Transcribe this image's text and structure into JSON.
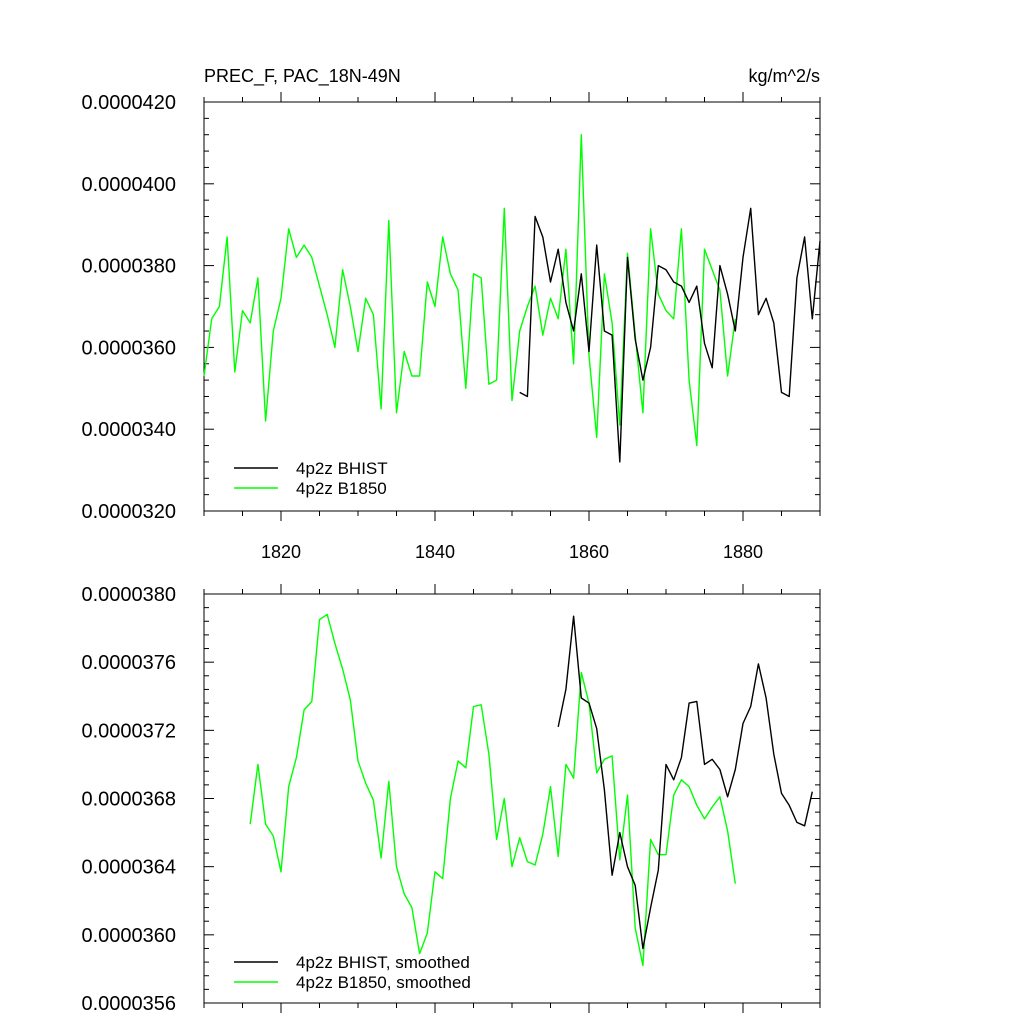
{
  "chart_data": [
    {
      "type": "line",
      "title": "PREC_F, PAC_18N-49N",
      "units": "kg/m^2/s",
      "ylim": [
        3.2e-05,
        4.2e-05
      ],
      "xlim": [
        1810,
        1890
      ],
      "y_tick_labels": [
        "0.0000320",
        "0.0000340",
        "0.0000360",
        "0.0000380",
        "0.0000400",
        "0.0000420"
      ],
      "x_tick_labels": [
        "1820",
        "1840",
        "1860",
        "1880"
      ],
      "legend_position": "bottom-left",
      "series": [
        {
          "name": "4p2z BHIST",
          "color": "#000000",
          "x_start": 1851,
          "values": [
            3.49e-05,
            3.48e-05,
            3.92e-05,
            3.87e-05,
            3.76e-05,
            3.84e-05,
            3.71e-05,
            3.64e-05,
            3.78e-05,
            3.59e-05,
            3.85e-05,
            3.64e-05,
            3.63e-05,
            3.32e-05,
            3.82e-05,
            3.62e-05,
            3.52e-05,
            3.6e-05,
            3.8e-05,
            3.79e-05,
            3.76e-05,
            3.75e-05,
            3.71e-05,
            3.75e-05,
            3.61e-05,
            3.55e-05,
            3.8e-05,
            3.73e-05,
            3.64e-05,
            3.82e-05,
            3.94e-05,
            3.68e-05,
            3.72e-05,
            3.66e-05,
            3.49e-05,
            3.48e-05,
            3.77e-05,
            3.87e-05,
            3.67e-05,
            3.86e-05
          ]
        },
        {
          "name": "4p2z B1850",
          "color": "#00ff00",
          "x_start": 1810,
          "values": [
            3.53e-05,
            3.67e-05,
            3.7e-05,
            3.87e-05,
            3.54e-05,
            3.69e-05,
            3.66e-05,
            3.77e-05,
            3.42e-05,
            3.64e-05,
            3.72e-05,
            3.89e-05,
            3.82e-05,
            3.85e-05,
            3.82e-05,
            3.75e-05,
            3.68e-05,
            3.6e-05,
            3.79e-05,
            3.7e-05,
            3.59e-05,
            3.72e-05,
            3.68e-05,
            3.45e-05,
            3.91e-05,
            3.44e-05,
            3.59e-05,
            3.53e-05,
            3.53e-05,
            3.76e-05,
            3.7e-05,
            3.87e-05,
            3.78e-05,
            3.74e-05,
            3.5e-05,
            3.78e-05,
            3.77e-05,
            3.51e-05,
            3.52e-05,
            3.94e-05,
            3.47e-05,
            3.64e-05,
            3.7e-05,
            3.75e-05,
            3.63e-05,
            3.72e-05,
            3.67e-05,
            3.84e-05,
            3.56e-05,
            4.12e-05,
            3.58e-05,
            3.38e-05,
            3.78e-05,
            3.66e-05,
            3.41e-05,
            3.83e-05,
            3.63e-05,
            3.44e-05,
            3.89e-05,
            3.73e-05,
            3.69e-05,
            3.67e-05,
            3.89e-05,
            3.52e-05,
            3.36e-05,
            3.84e-05,
            3.79e-05,
            3.74e-05,
            3.53e-05,
            3.67e-05
          ]
        }
      ]
    },
    {
      "type": "line",
      "ylim": [
        3.56e-05,
        3.8e-05
      ],
      "xlim": [
        1810,
        1890
      ],
      "y_tick_labels": [
        "0.0000356",
        "0.0000360",
        "0.0000364",
        "0.0000368",
        "0.0000372",
        "0.0000376",
        "0.0000380"
      ],
      "legend_position": "bottom-left",
      "series": [
        {
          "name": "4p2z BHIST, smoothed",
          "color": "#000000",
          "x_start": 1856,
          "values": [
            3.722e-05,
            3.744e-05,
            3.787e-05,
            3.739e-05,
            3.736e-05,
            3.721e-05,
            3.685e-05,
            3.635e-05,
            3.66e-05,
            3.64e-05,
            3.629e-05,
            3.592e-05,
            3.616e-05,
            3.638e-05,
            3.7e-05,
            3.691e-05,
            3.704e-05,
            3.736e-05,
            3.737e-05,
            3.7e-05,
            3.703e-05,
            3.697e-05,
            3.681e-05,
            3.697e-05,
            3.724e-05,
            3.734e-05,
            3.759e-05,
            3.739e-05,
            3.706e-05,
            3.683e-05,
            3.676e-05,
            3.666e-05,
            3.664e-05,
            3.684e-05
          ]
        },
        {
          "name": "4p2z B1850, smoothed",
          "color": "#00ff00",
          "x_start": 1816,
          "values": [
            3.665e-05,
            3.7e-05,
            3.665e-05,
            3.658e-05,
            3.637e-05,
            3.687e-05,
            3.704e-05,
            3.732e-05,
            3.737e-05,
            3.785e-05,
            3.788e-05,
            3.771e-05,
            3.756e-05,
            3.738e-05,
            3.702e-05,
            3.689e-05,
            3.679e-05,
            3.645e-05,
            3.69e-05,
            3.64e-05,
            3.624e-05,
            3.616e-05,
            3.589e-05,
            3.601e-05,
            3.637e-05,
            3.633e-05,
            3.68e-05,
            3.702e-05,
            3.698e-05,
            3.734e-05,
            3.735e-05,
            3.706e-05,
            3.656e-05,
            3.68e-05,
            3.64e-05,
            3.657e-05,
            3.643e-05,
            3.641e-05,
            3.659e-05,
            3.687e-05,
            3.646e-05,
            3.7e-05,
            3.692e-05,
            3.754e-05,
            3.736e-05,
            3.695e-05,
            3.703e-05,
            3.705e-05,
            3.644e-05,
            3.682e-05,
            3.604e-05,
            3.582e-05,
            3.656e-05,
            3.647e-05,
            3.647e-05,
            3.682e-05,
            3.691e-05,
            3.687e-05,
            3.676e-05,
            3.668e-05,
            3.675e-05,
            3.681e-05,
            3.661e-05,
            3.63e-05
          ]
        }
      ]
    }
  ]
}
